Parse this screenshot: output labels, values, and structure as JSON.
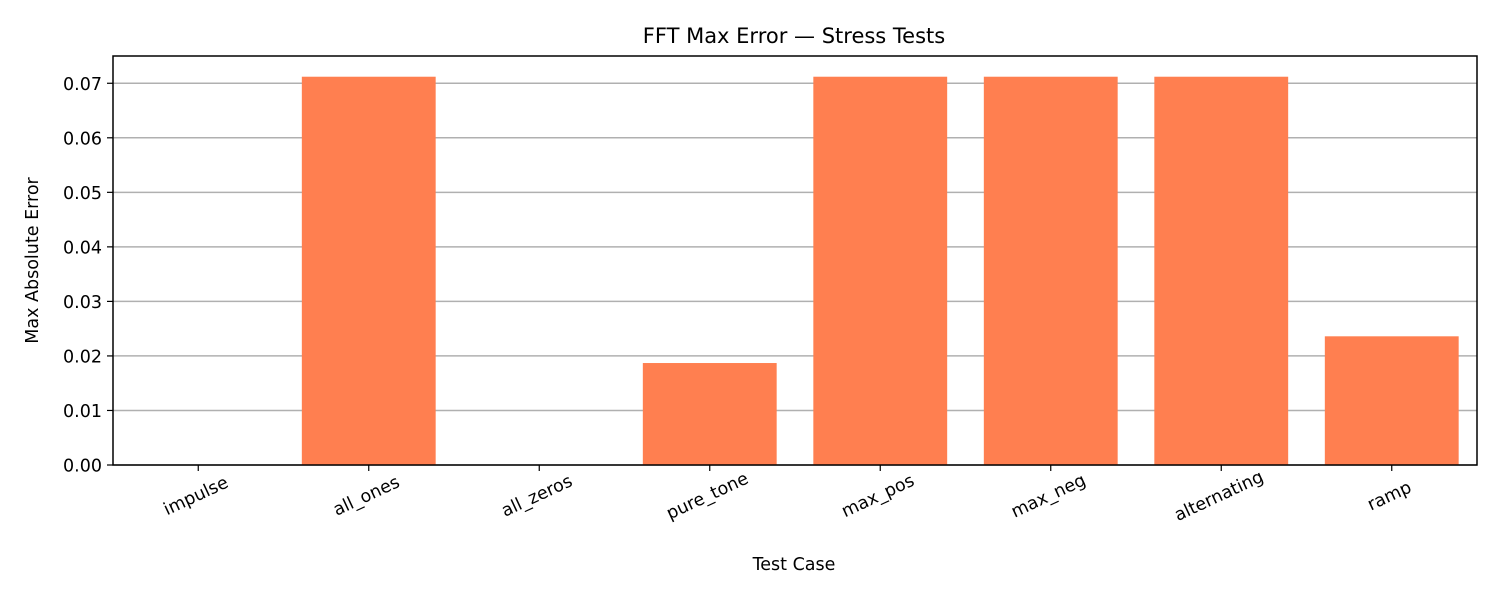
{
  "chart_data": {
    "type": "bar",
    "title": "FFT Max Error — Stress Tests",
    "xlabel": "Test Case",
    "ylabel": "Max Absolute Error",
    "categories": [
      "impulse",
      "all_ones",
      "all_zeros",
      "pure_tone",
      "max_pos",
      "max_neg",
      "alternating",
      "ramp"
    ],
    "values": [
      0.0,
      0.0712,
      0.0,
      0.0187,
      0.0712,
      0.0712,
      0.0712,
      0.0236
    ],
    "ylim": [
      0,
      0.075
    ],
    "yticks": [
      0.0,
      0.01,
      0.02,
      0.03,
      0.04,
      0.05,
      0.06,
      0.07
    ],
    "ytick_labels": [
      "0.00",
      "0.01",
      "0.02",
      "0.03",
      "0.04",
      "0.05",
      "0.06",
      "0.07"
    ],
    "grid": "y",
    "xtick_rotation": -25,
    "colors": {
      "bar": "#ff7f50",
      "grid": "#b0b0b0",
      "axis": "#000000"
    }
  }
}
